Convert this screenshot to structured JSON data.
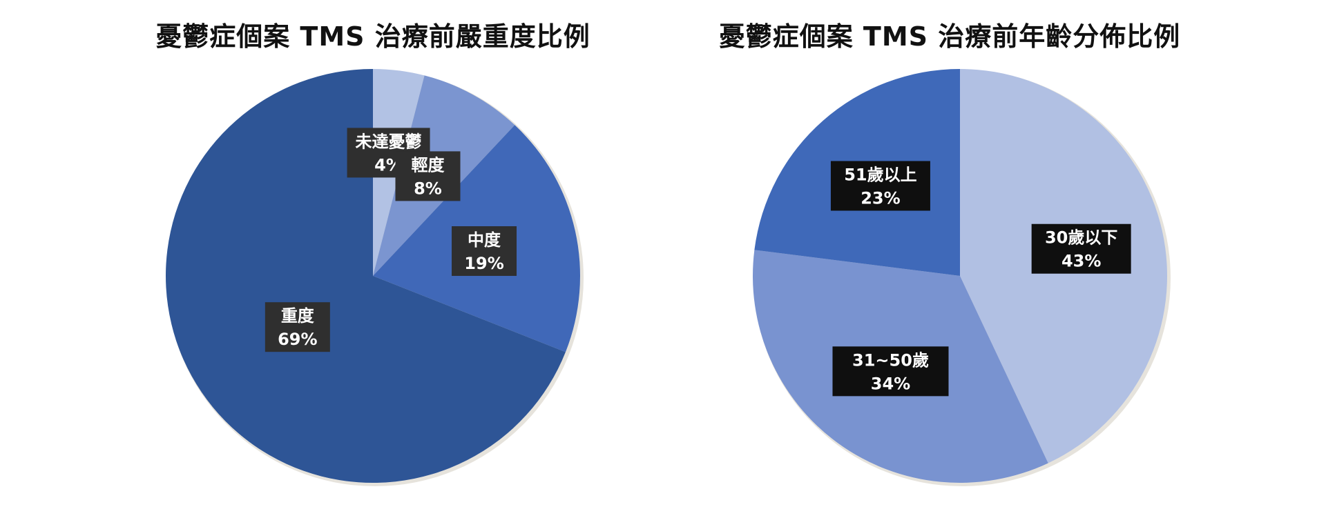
{
  "chart_data": [
    {
      "type": "pie",
      "title": "憂鬱症個案 TMS 治療前嚴重度比例",
      "categories": [
        "未達憂鬱",
        "輕度",
        "中度",
        "重度"
      ],
      "values": [
        4,
        8,
        19,
        69
      ],
      "value_labels": [
        "4%",
        "8%",
        "19%",
        "69%"
      ],
      "colors": [
        "#b2c2e4",
        "#7b95d0",
        "#4068b8",
        "#2e5596"
      ],
      "label_box_color": "#2f2f2f",
      "start_angle": "12 o'clock",
      "direction": "clockwise",
      "legend": "none"
    },
    {
      "type": "pie",
      "title": "憂鬱症個案 TMS 治療前年齡分佈比例",
      "categories": [
        "30歲以下",
        "31~50歲",
        "51歲以上"
      ],
      "values": [
        43,
        34,
        23
      ],
      "value_labels": [
        "43%",
        "34%",
        "23%"
      ],
      "colors": [
        "#b1c0e3",
        "#7993d0",
        "#3f69b9"
      ],
      "label_box_color": "#0f0f0f",
      "start_angle": "12 o'clock",
      "direction": "clockwise",
      "legend": "none"
    }
  ]
}
